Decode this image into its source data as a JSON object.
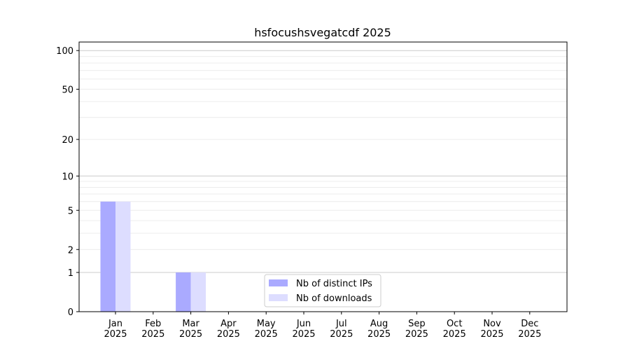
{
  "chart_data": {
    "type": "bar",
    "title": "hsfocushsvegatcdf 2025",
    "xlabel": "",
    "ylabel": "",
    "yscale": "symlog (log10(1+y))",
    "ylim": [
      0,
      110
    ],
    "yticks": [
      0,
      1,
      2,
      5,
      10,
      20,
      50,
      100
    ],
    "grid": true,
    "legend_placement": "lower-center",
    "categories": [
      "Jan\n2025",
      "Feb\n2025",
      "Mar\n2025",
      "Apr\n2025",
      "May\n2025",
      "Jun\n2025",
      "Jul\n2025",
      "Aug\n2025",
      "Sep\n2025",
      "Oct\n2025",
      "Nov\n2025",
      "Dec\n2025"
    ],
    "series": [
      {
        "name": "Nb of distinct IPs",
        "color": "#aaaaff",
        "values": [
          6,
          0,
          1,
          0,
          0,
          0,
          0,
          0,
          0,
          0,
          0,
          0
        ]
      },
      {
        "name": "Nb of downloads",
        "color": "#ddddff",
        "values": [
          6,
          0,
          1,
          0,
          0,
          0,
          0,
          0,
          0,
          0,
          0,
          0
        ]
      }
    ]
  }
}
